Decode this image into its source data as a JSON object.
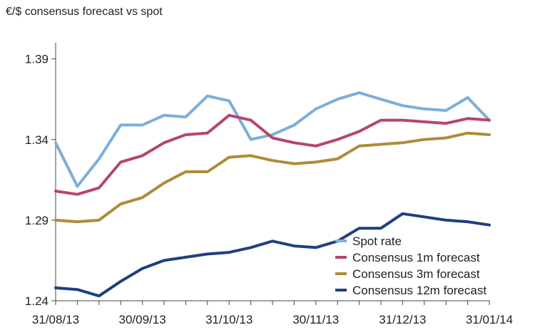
{
  "chart_data": {
    "type": "line",
    "title": "€/$ consensus forecast vs spot",
    "xlabel": "",
    "ylabel": "",
    "ylim": [
      1.24,
      1.4
    ],
    "yticks": [
      1.24,
      1.29,
      1.34,
      1.39
    ],
    "ytick_labels": [
      "1.24",
      "1.29",
      "1.34",
      "1.39"
    ],
    "grid": false,
    "legend_position": "bottom-right",
    "x": [
      "31/08/13",
      "07/09/13",
      "14/09/13",
      "21/09/13",
      "30/09/13",
      "07/10/13",
      "14/10/13",
      "21/10/13",
      "31/10/13",
      "07/11/13",
      "14/11/13",
      "21/11/13",
      "30/11/13",
      "07/12/13",
      "14/12/13",
      "21/12/13",
      "31/12/13",
      "07/01/14",
      "14/01/14",
      "21/01/14",
      "31/01/14"
    ],
    "xtick_labels": [
      "31/08/13",
      "30/09/13",
      "31/10/13",
      "30/11/13",
      "31/12/13",
      "31/01/14"
    ],
    "series": [
      {
        "name": "Spot rate",
        "color": "#7BAFDA",
        "values": [
          1.338,
          1.311,
          1.328,
          1.349,
          1.349,
          1.355,
          1.354,
          1.367,
          1.364,
          1.34,
          1.343,
          1.349,
          1.359,
          1.365,
          1.369,
          1.365,
          1.361,
          1.359,
          1.358,
          1.366,
          1.352
        ]
      },
      {
        "name": "Consensus 1m forecast",
        "color": "#B5466E",
        "values": [
          1.308,
          1.306,
          1.31,
          1.326,
          1.33,
          1.338,
          1.343,
          1.344,
          1.355,
          1.352,
          1.341,
          1.338,
          1.336,
          1.34,
          1.345,
          1.352,
          1.352,
          1.351,
          1.35,
          1.353,
          1.352
        ]
      },
      {
        "name": "Consensus 3m forecast",
        "color": "#B08B3A",
        "values": [
          1.29,
          1.289,
          1.29,
          1.3,
          1.304,
          1.313,
          1.32,
          1.32,
          1.329,
          1.33,
          1.327,
          1.325,
          1.326,
          1.328,
          1.336,
          1.337,
          1.338,
          1.34,
          1.341,
          1.344,
          1.343
        ]
      },
      {
        "name": "Consensus 12m forecast",
        "color": "#1F3F7F",
        "values": [
          1.248,
          1.247,
          1.243,
          1.252,
          1.26,
          1.265,
          1.267,
          1.269,
          1.27,
          1.273,
          1.277,
          1.274,
          1.273,
          1.277,
          1.285,
          1.285,
          1.294,
          1.292,
          1.29,
          1.289,
          1.287
        ]
      }
    ]
  }
}
